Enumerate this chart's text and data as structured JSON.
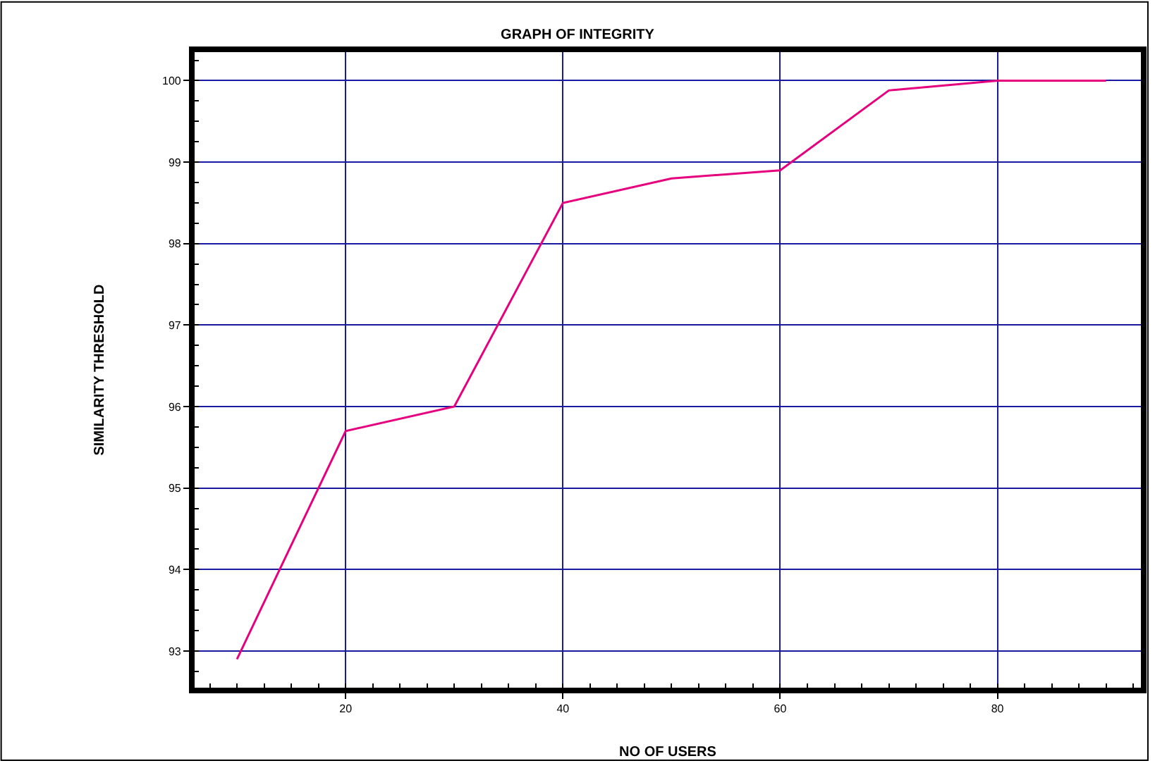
{
  "chart_data": {
    "type": "line",
    "title": "GRAPH OF INTEGRITY",
    "xlabel": "NO OF USERS",
    "ylabel": "SIMILARITY THRESHOLD",
    "x": [
      10,
      20,
      30,
      40,
      50,
      60,
      70,
      80,
      90
    ],
    "series": [
      {
        "color": "#e6007e",
        "values": [
          92.9,
          95.7,
          96.0,
          98.5,
          98.8,
          98.9,
          99.88,
          100.0,
          100.0
        ]
      }
    ],
    "xlim": [
      6.1,
      93.2
    ],
    "ylim": [
      92.55,
      100.35
    ],
    "xticks": [
      20,
      40,
      60,
      80
    ],
    "yticks": [
      93,
      94,
      95,
      96,
      97,
      98,
      99,
      100
    ],
    "grid": true,
    "legend": false,
    "marker": "none",
    "line_style": "solid"
  }
}
